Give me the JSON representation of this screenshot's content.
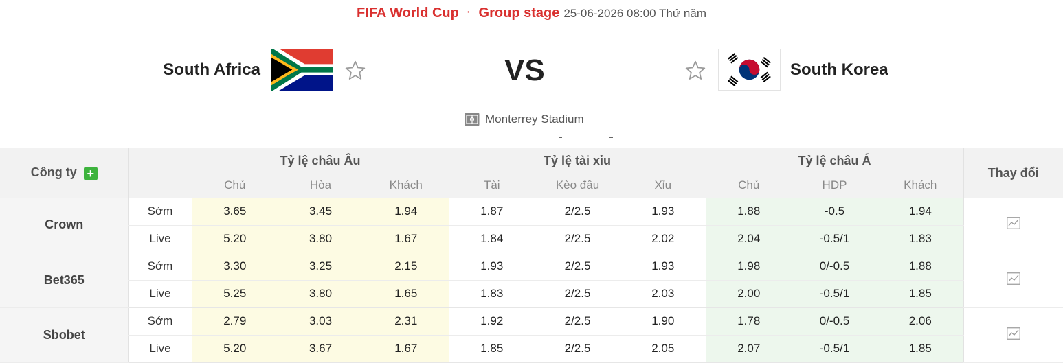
{
  "header": {
    "competition": "FIFA World Cup",
    "separator": "·",
    "stage": "Group stage",
    "datetime": "25-06-2026 08:00 Thứ năm"
  },
  "match": {
    "home_team": "South Africa",
    "away_team": "South Korea",
    "vs": "VS",
    "home_flag": "south-africa-flag",
    "away_flag": "south-korea-flag",
    "stadium": "Monterrey Stadium"
  },
  "table": {
    "company_header": "Công ty",
    "group_headers": [
      "Tỷ lệ châu Âu",
      "Tỷ lệ tài xỉu",
      "Tỷ lệ châu Á"
    ],
    "change_header": "Thay đổi",
    "sub_headers": [
      "Chủ",
      "Hòa",
      "Khách",
      "Tài",
      "Kèo đầu",
      "Xỉu",
      "Chủ",
      "HDP",
      "Khách"
    ],
    "companies": [
      {
        "name": "Crown",
        "rows": [
          {
            "period": "Sớm",
            "values": [
              "3.65",
              "3.45",
              "1.94",
              "1.87",
              "2/2.5",
              "1.93",
              "1.88",
              "-0.5",
              "1.94"
            ]
          },
          {
            "period": "Live",
            "values": [
              "5.20",
              "3.80",
              "1.67",
              "1.84",
              "2/2.5",
              "2.02",
              "2.04",
              "-0.5/1",
              "1.83"
            ]
          }
        ]
      },
      {
        "name": "Bet365",
        "rows": [
          {
            "period": "Sớm",
            "values": [
              "3.30",
              "3.25",
              "2.15",
              "1.93",
              "2/2.5",
              "1.93",
              "1.98",
              "0/-0.5",
              "1.88"
            ]
          },
          {
            "period": "Live",
            "values": [
              "5.25",
              "3.80",
              "1.65",
              "1.83",
              "2/2.5",
              "2.03",
              "2.00",
              "-0.5/1",
              "1.85"
            ]
          }
        ]
      },
      {
        "name": "Sbobet",
        "rows": [
          {
            "period": "Sớm",
            "values": [
              "2.79",
              "3.03",
              "2.31",
              "1.92",
              "2/2.5",
              "1.90",
              "1.78",
              "0/-0.5",
              "2.06"
            ]
          },
          {
            "period": "Live",
            "values": [
              "5.20",
              "3.67",
              "1.67",
              "1.85",
              "2/2.5",
              "2.05",
              "2.07",
              "-0.5/1",
              "1.85"
            ]
          }
        ]
      }
    ]
  },
  "colors": {
    "accent_red": "#d9302f",
    "euro_bg": "#fdfbe3",
    "asian_bg": "#edf7ed",
    "header_bg": "#f2f2f2",
    "plus_green": "#3db33d"
  }
}
